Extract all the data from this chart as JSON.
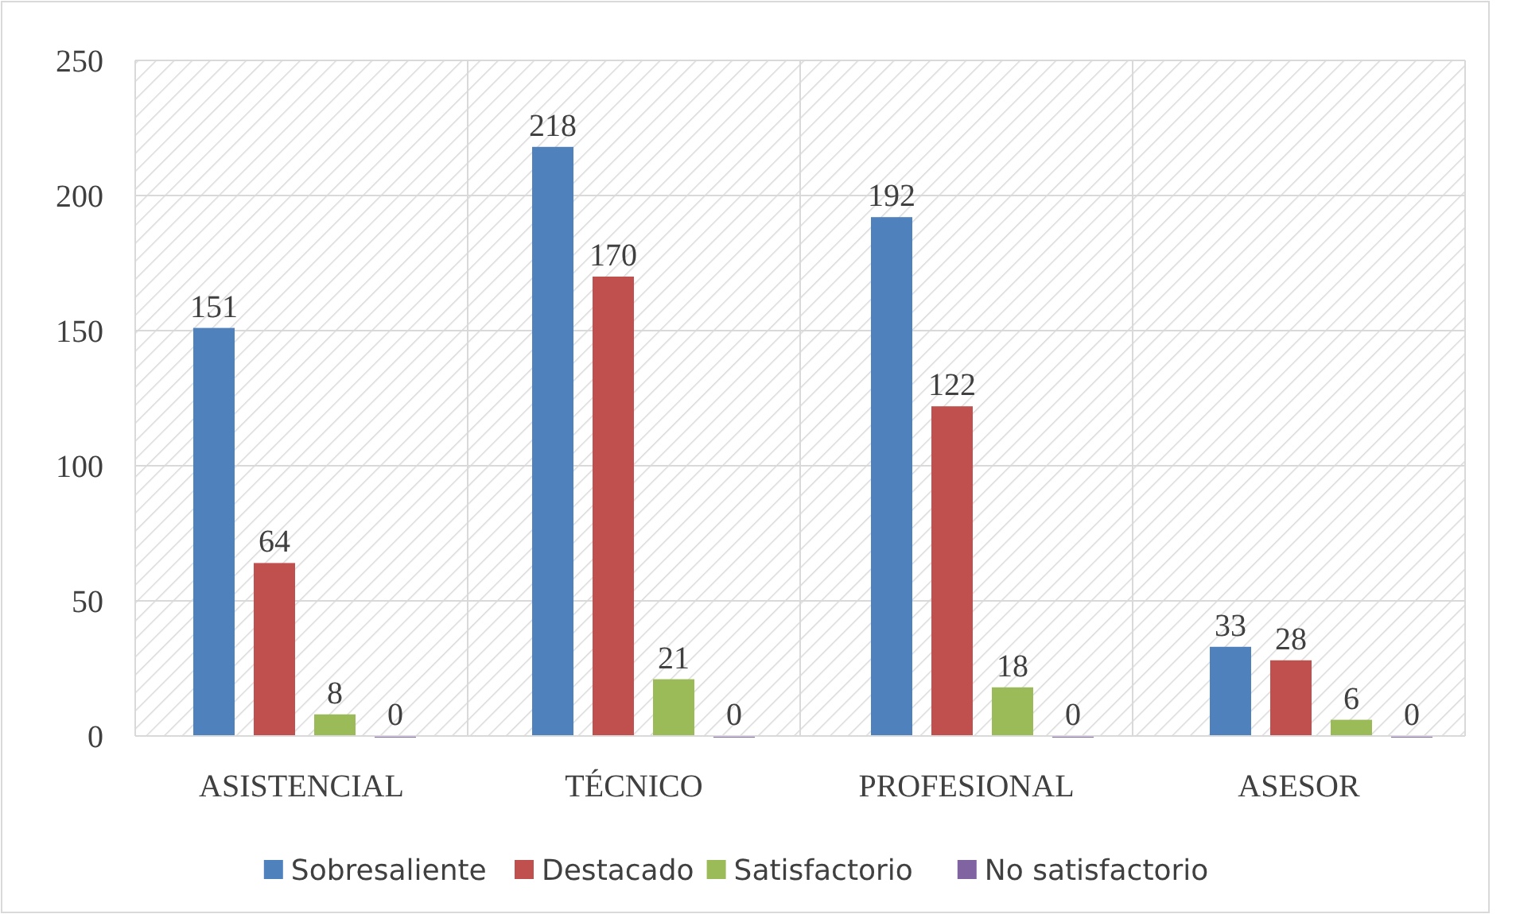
{
  "chart_data": {
    "type": "bar",
    "categories": [
      "ASISTENCIAL",
      "TÉCNICO",
      "PROFESIONAL",
      "ASESOR"
    ],
    "series": [
      {
        "name": "Sobresaliente",
        "color": "#4f81bd",
        "values": [
          151,
          218,
          192,
          33
        ]
      },
      {
        "name": "Destacado",
        "color": "#c0504d",
        "values": [
          64,
          170,
          122,
          28
        ]
      },
      {
        "name": "Satisfactorio",
        "color": "#9bbb59",
        "values": [
          8,
          21,
          18,
          6
        ]
      },
      {
        "name": "No satisfactorio",
        "color": "#8064a2",
        "values": [
          0,
          0,
          0,
          0
        ]
      }
    ],
    "ylim": [
      0,
      250
    ],
    "yticks": [
      0,
      50,
      100,
      150,
      200,
      250
    ],
    "grid": true,
    "legend": "bottom",
    "data_labels": true
  }
}
